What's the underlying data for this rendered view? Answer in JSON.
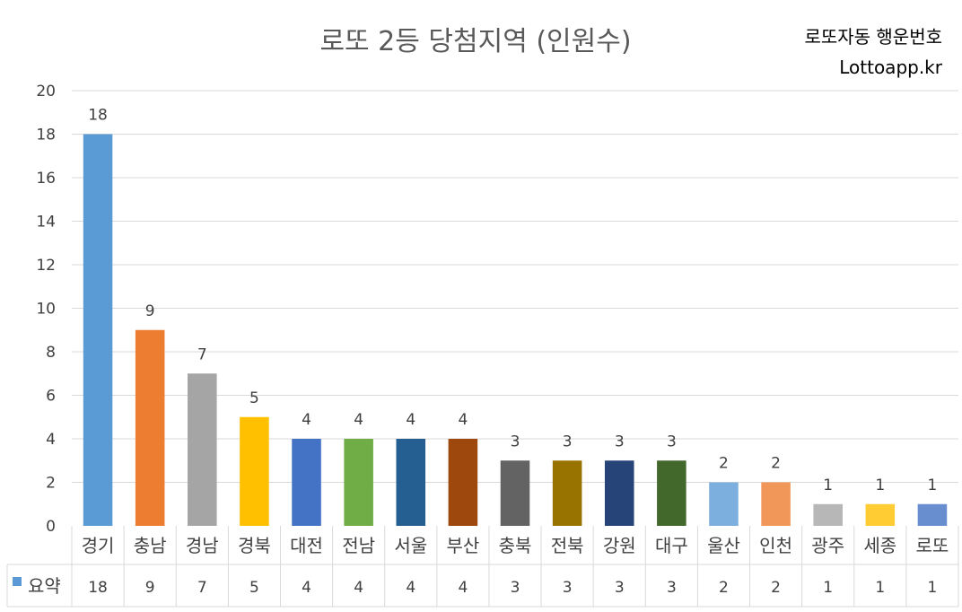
{
  "title": "로또 2등 당첨지역 (인원수)",
  "watermark": {
    "line1": "로또자동 행운번호",
    "line2": "Lottoapp.kr"
  },
  "chart_data": {
    "type": "bar",
    "title": "로또 2등 당첨지역 (인원수)",
    "xlabel": "",
    "ylabel": "",
    "ylim": [
      0,
      20
    ],
    "ytick_step": 2,
    "grid": true,
    "legend": "data-table",
    "categories": [
      "경기",
      "충남",
      "경남",
      "경북",
      "대전",
      "전남",
      "서울",
      "부산",
      "충북",
      "전북",
      "강원",
      "대구",
      "울산",
      "인천",
      "광주",
      "세종",
      "로또"
    ],
    "series": [
      {
        "name": "요약",
        "values": [
          18,
          9,
          7,
          5,
          4,
          4,
          4,
          4,
          3,
          3,
          3,
          3,
          2,
          2,
          1,
          1,
          1
        ],
        "colors": [
          "#5b9bd5",
          "#ed7d31",
          "#a5a5a5",
          "#ffc000",
          "#4472c4",
          "#70ad47",
          "#255e91",
          "#9e480e",
          "#636363",
          "#997300",
          "#264478",
          "#43682b",
          "#7cafdd",
          "#f1975a",
          "#b7b7b7",
          "#ffcd33",
          "#698ed0"
        ]
      }
    ],
    "legend_color": "#5b9bd5"
  }
}
